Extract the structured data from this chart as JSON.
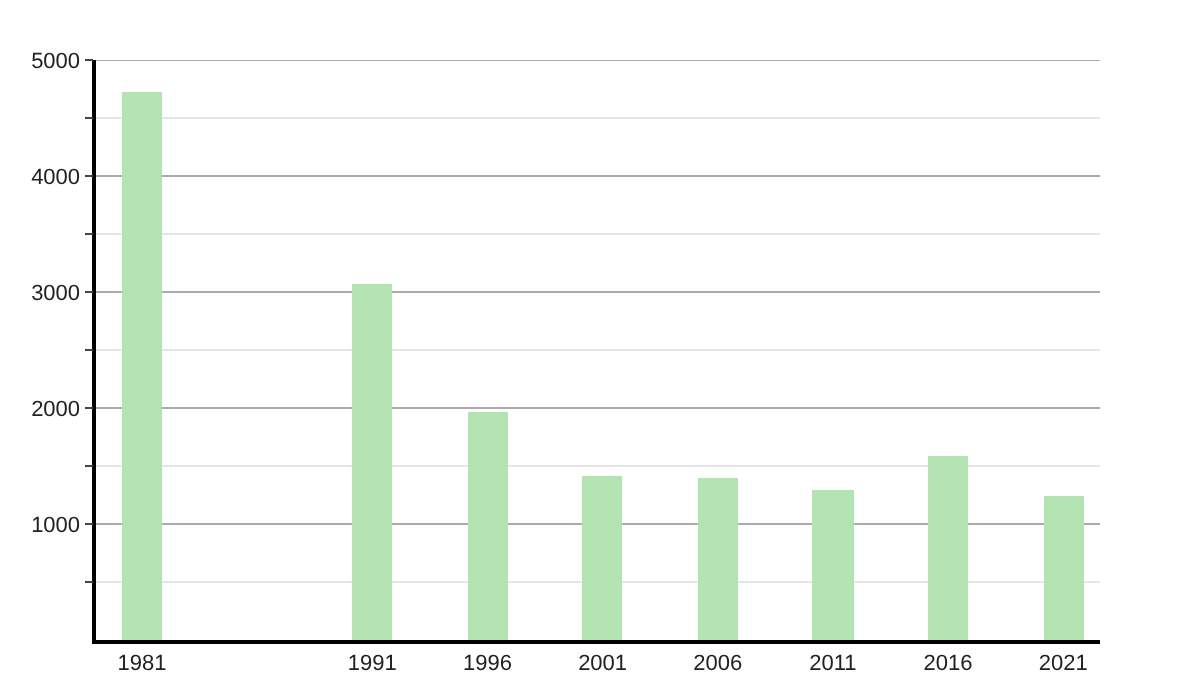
{
  "chart_data": {
    "type": "bar",
    "x": [
      1981,
      1991,
      1996,
      2001,
      2006,
      2011,
      2016,
      2021
    ],
    "values": [
      4730,
      3070,
      1970,
      1410,
      1400,
      1290,
      1590,
      1250
    ],
    "color": "#b2e3b0",
    "xlim": [
      1979,
      2022.6
    ],
    "xticks": [
      1981,
      1991,
      1996,
      2001,
      2006,
      2011,
      2016,
      2021
    ],
    "ylim": [
      0,
      5000
    ],
    "yticks": [
      {
        "value": 500,
        "label": null
      },
      1000,
      {
        "value": 1500,
        "label": null
      },
      2000,
      {
        "value": 2500,
        "label": null
      },
      3000,
      {
        "value": 3500,
        "label": null
      },
      4000,
      {
        "value": 4500,
        "label": null
      },
      5000
    ],
    "grid": "y"
  }
}
